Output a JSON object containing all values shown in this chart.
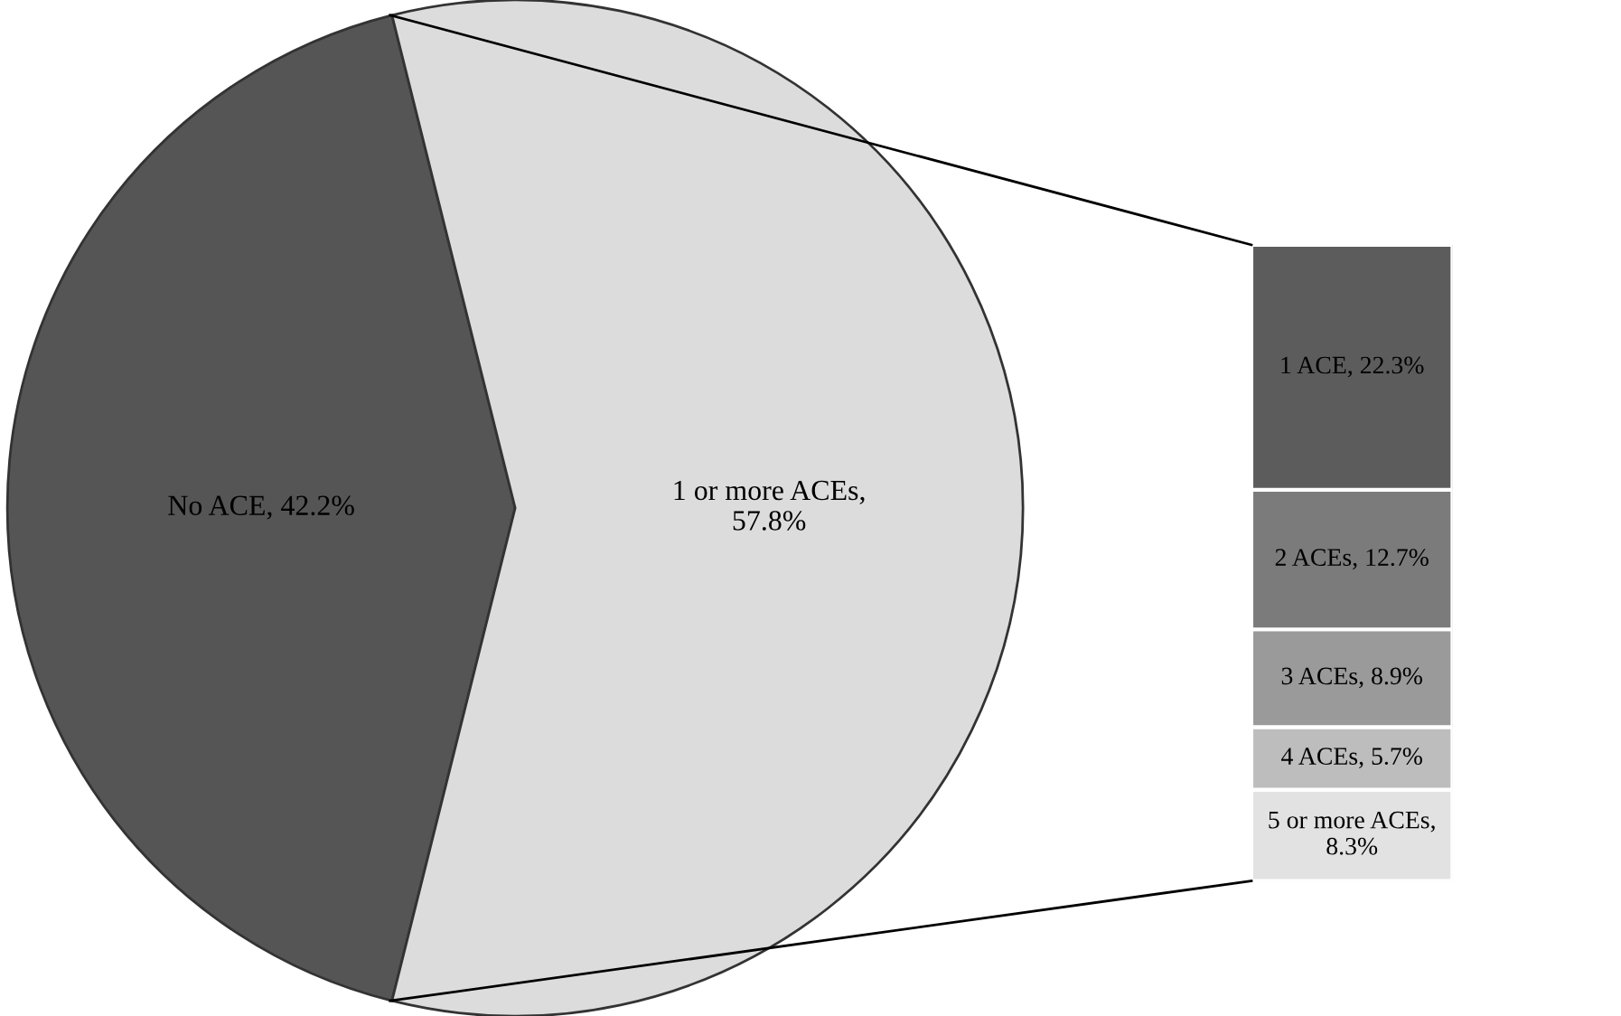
{
  "chart_data": [
    {
      "type": "pie",
      "categories": [
        "No ACE, 42.2%",
        "1 or more ACEs,\n57.8%"
      ],
      "values": [
        42.2,
        57.8
      ],
      "colors": [
        "#555555",
        "#dcdcdc"
      ]
    },
    {
      "type": "bar",
      "stacked": true,
      "categories": [
        null
      ],
      "series": [
        {
          "color": "#e2e2e2",
          "values": [
            8.3
          ],
          "value_labels": [
            "5 or more ACEs,\n8.3%"
          ]
        },
        {
          "color": "#bdbdbd",
          "values": [
            5.7
          ],
          "value_labels": [
            "4 ACEs, 5.7%"
          ]
        },
        {
          "color": "#9a9a9a",
          "values": [
            8.9
          ],
          "value_labels": [
            "3 ACEs, 8.9%"
          ]
        },
        {
          "color": "#7b7b7b",
          "values": [
            12.7
          ],
          "value_labels": [
            "2 ACEs, 12.7%"
          ]
        },
        {
          "color": "#5c5c5c",
          "values": [
            22.3
          ],
          "value_labels": [
            "1 ACE, 22.3%"
          ]
        }
      ]
    }
  ]
}
